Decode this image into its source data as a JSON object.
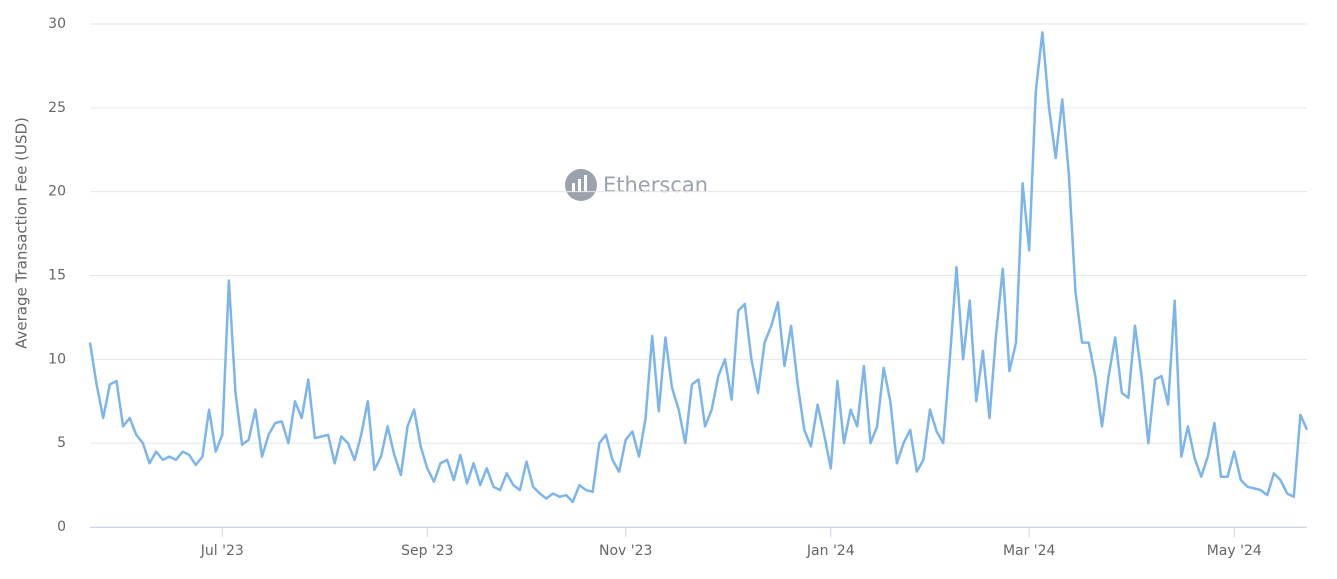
{
  "chart_data": {
    "type": "line",
    "y_label": "Average Transaction Fee (USD)",
    "watermark": "Etherscan",
    "categories": [
      null,
      null,
      null,
      null,
      null,
      null,
      null,
      null,
      null,
      null,
      null,
      null,
      null,
      null,
      null,
      null,
      null,
      null,
      null,
      null,
      "Jul '23",
      null,
      null,
      null,
      null,
      null,
      null,
      null,
      null,
      null,
      null,
      null,
      null,
      null,
      null,
      null,
      null,
      null,
      null,
      null,
      null,
      null,
      null,
      null,
      null,
      null,
      null,
      null,
      null,
      null,
      null,
      "Sep '23",
      null,
      null,
      null,
      null,
      null,
      null,
      null,
      null,
      null,
      null,
      null,
      null,
      null,
      null,
      null,
      null,
      null,
      null,
      null,
      null,
      null,
      null,
      null,
      null,
      null,
      null,
      null,
      null,
      null,
      "Nov '23",
      null,
      null,
      null,
      null,
      null,
      null,
      null,
      null,
      null,
      null,
      null,
      null,
      null,
      null,
      null,
      null,
      null,
      null,
      null,
      null,
      null,
      null,
      null,
      null,
      null,
      null,
      null,
      null,
      null,
      null,
      "Jan '24",
      null,
      null,
      null,
      null,
      null,
      null,
      null,
      null,
      null,
      null,
      null,
      null,
      null,
      null,
      null,
      null,
      null,
      null,
      null,
      null,
      null,
      null,
      null,
      null,
      null,
      null,
      null,
      null,
      null,
      "Mar '24",
      null,
      null,
      null,
      null,
      null,
      null,
      null,
      null,
      null,
      null,
      null,
      null,
      null,
      null,
      null,
      null,
      null,
      null,
      null,
      null,
      null,
      null,
      null,
      null,
      null,
      null,
      null,
      null,
      null,
      null,
      "May '24",
      null,
      null,
      null,
      null,
      null,
      null,
      null,
      null,
      null,
      null,
      null
    ],
    "values": [
      11,
      8.5,
      6.5,
      8.5,
      8.7,
      6,
      6.5,
      5.5,
      5,
      3.8,
      4.5,
      4,
      4.2,
      4,
      4.5,
      4.3,
      3.7,
      4.2,
      7,
      4.5,
      5.5,
      14.7,
      8,
      4.9,
      5.2,
      7,
      4.2,
      5.5,
      6.2,
      6.3,
      5,
      7.5,
      6.5,
      8.8,
      5.3,
      5.4,
      5.5,
      3.8,
      5.4,
      5,
      4,
      5.5,
      7.5,
      3.4,
      4.2,
      6,
      4.3,
      3.1,
      6,
      7,
      4.8,
      3.5,
      2.7,
      3.8,
      4,
      2.8,
      4.3,
      2.6,
      3.8,
      2.5,
      3.5,
      2.4,
      2.2,
      3.2,
      2.5,
      2.2,
      3.9,
      2.4,
      2,
      1.7,
      2,
      1.8,
      1.9,
      1.5,
      2.5,
      2.2,
      2.1,
      5,
      5.5,
      4,
      3.3,
      5.2,
      5.7,
      4.2,
      6.5,
      11.4,
      6.9,
      11.3,
      8.3,
      7,
      5,
      8.5,
      8.8,
      6,
      7,
      9,
      10,
      7.6,
      12.9,
      13.3,
      10,
      8,
      11,
      12,
      13.4,
      9.6,
      12,
      8.5,
      5.8,
      4.8,
      7.3,
      5.5,
      3.5,
      8.7,
      5,
      7,
      6,
      9.6,
      5,
      6,
      9.5,
      7.5,
      3.8,
      5,
      5.8,
      3.3,
      4,
      7,
      5.7,
      5,
      10,
      15.5,
      10,
      13.5,
      7.5,
      10.5,
      6.5,
      11.5,
      15.4,
      9.3,
      11,
      20.5,
      16.5,
      26,
      29.5,
      25,
      22,
      25.5,
      21,
      14,
      11,
      11,
      9,
      6,
      9,
      11.3,
      8,
      7.7,
      12,
      9,
      5,
      8.8,
      9,
      7.3,
      13.5,
      4.2,
      6,
      4.1,
      3,
      4.2,
      6.2,
      3,
      3,
      4.5,
      2.8,
      2.4,
      2.3,
      2.2,
      1.9,
      3.2,
      2.8,
      2,
      1.8,
      6.7,
      5.8
    ],
    "color": "#7cb5ec",
    "ylim": [
      0,
      30
    ],
    "yticks": [
      0,
      5,
      10,
      15,
      20,
      25,
      30
    ],
    "grid": true
  }
}
